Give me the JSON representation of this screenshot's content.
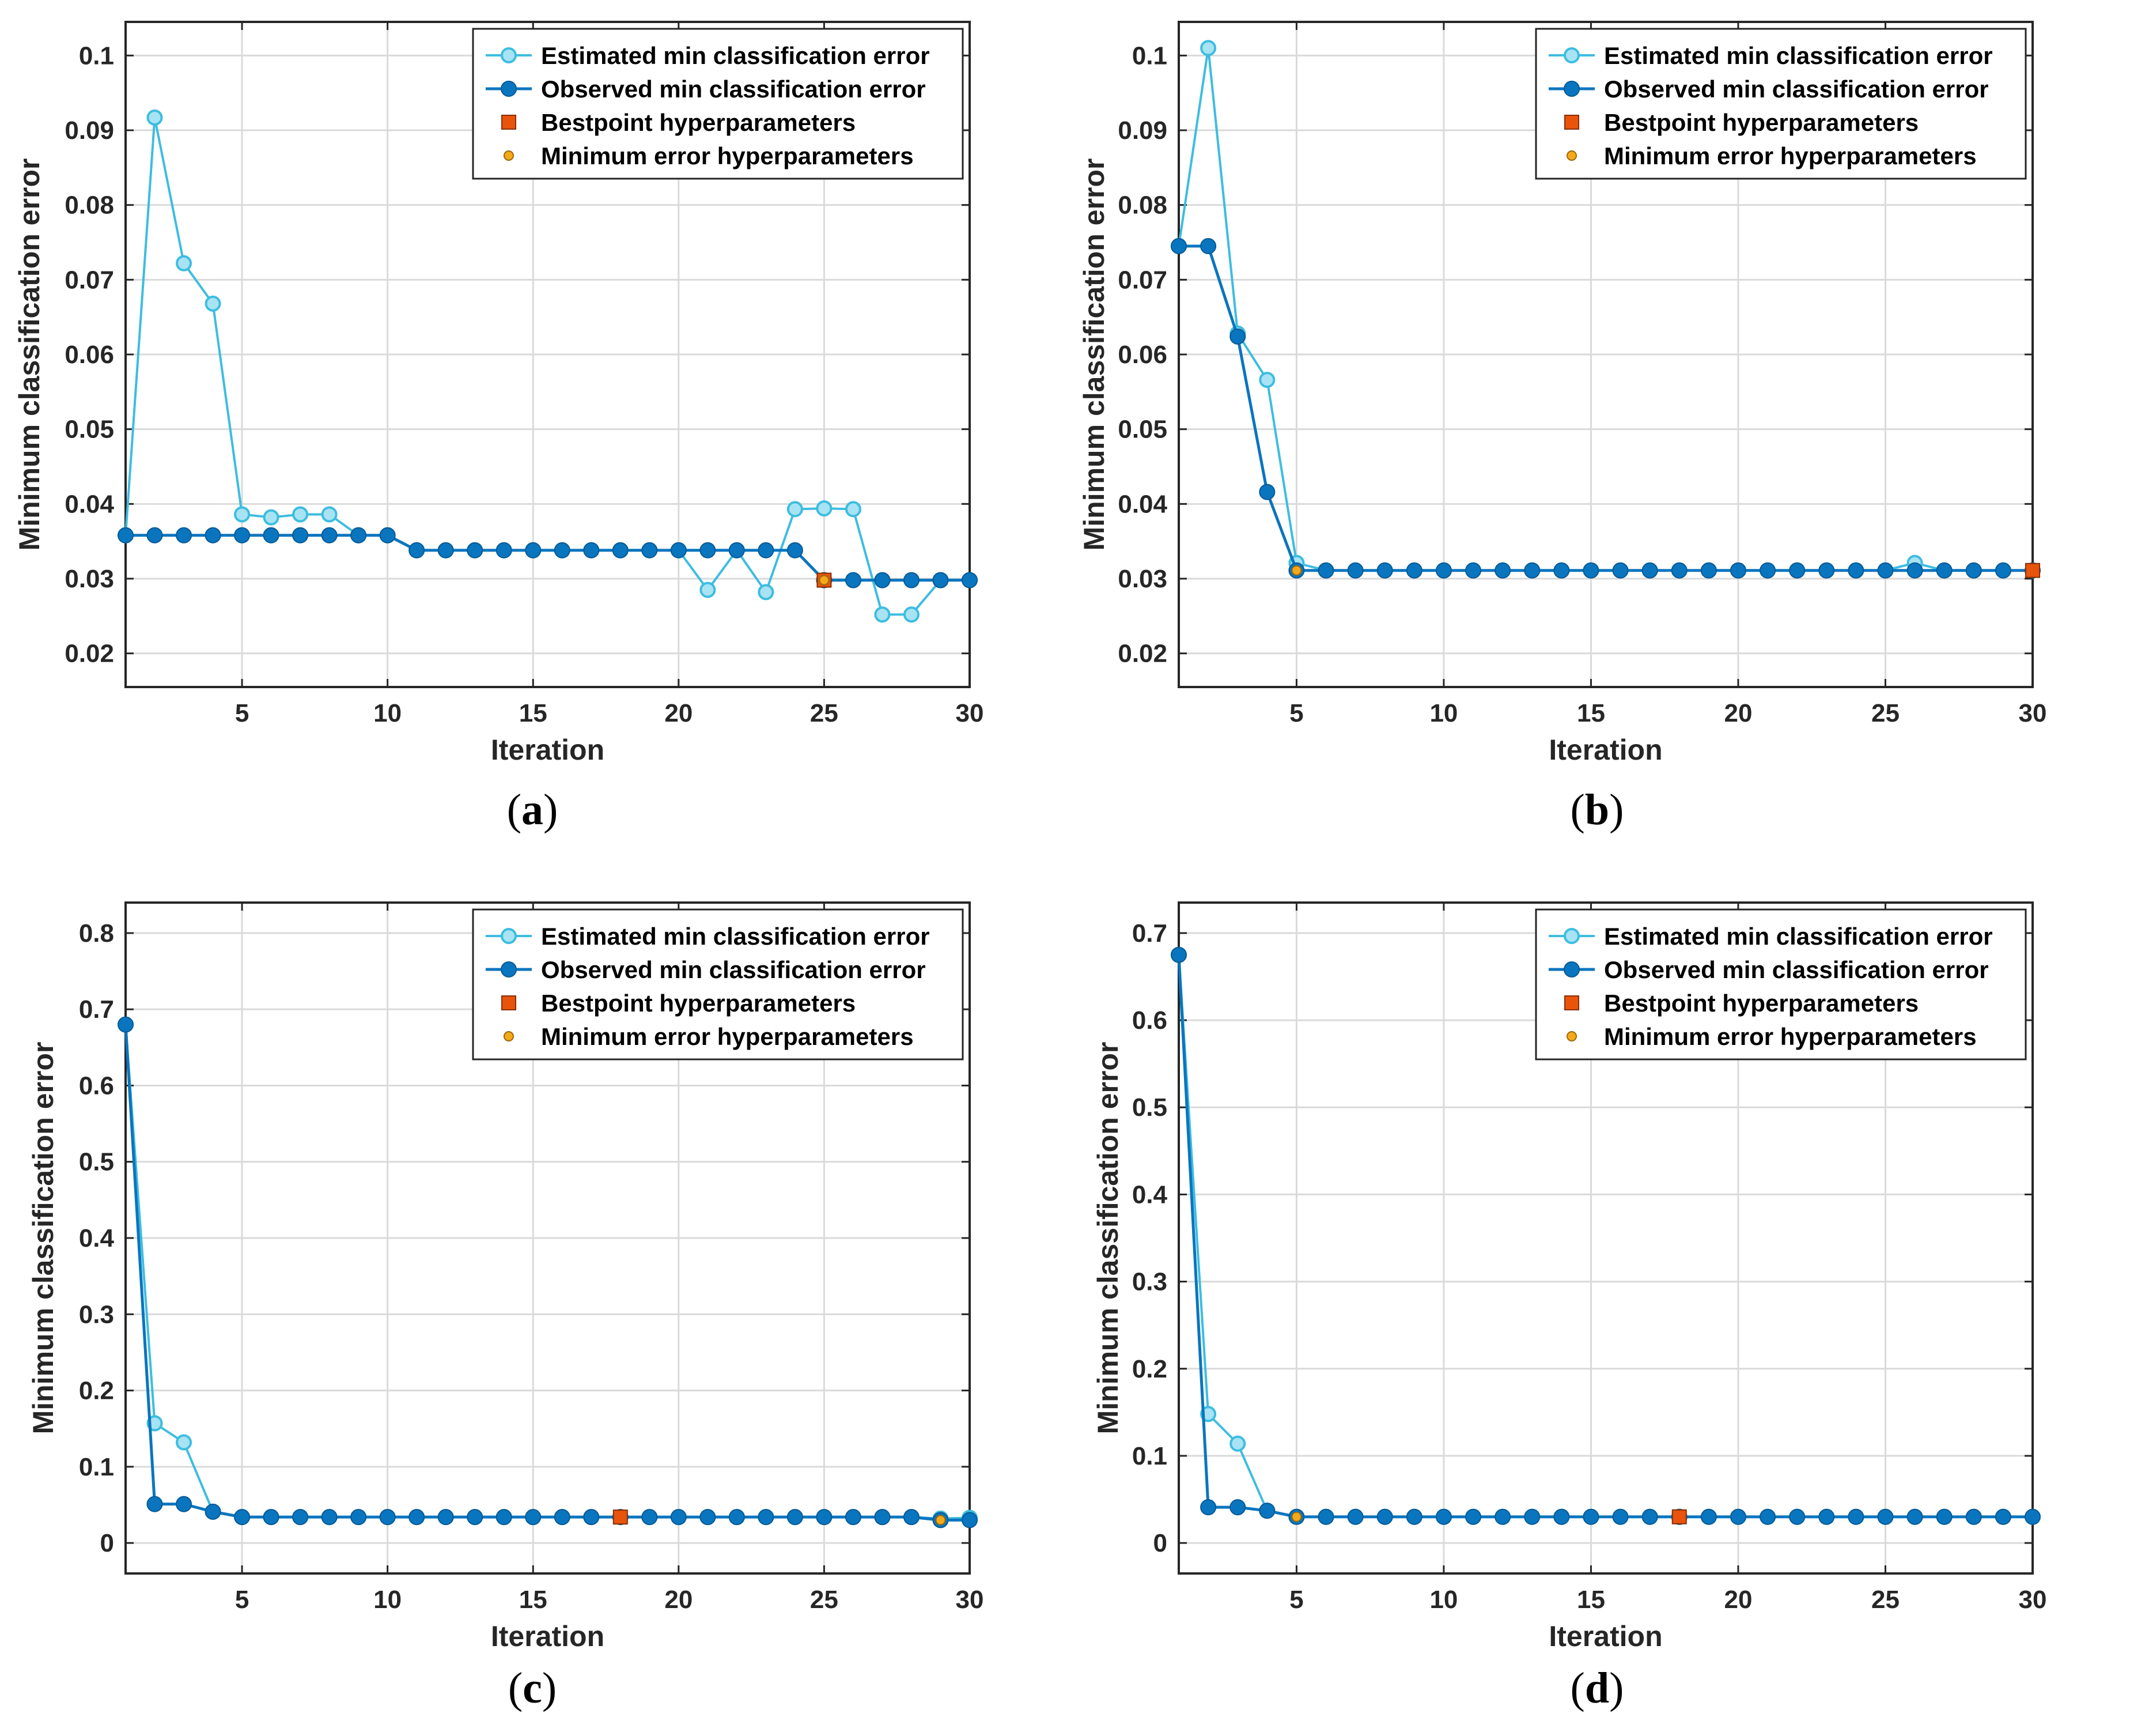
{
  "figure": {
    "colors": {
      "estimated": "#3DBDE0",
      "estimated_fill": "#A8E3F4",
      "observed": "#0A75BF",
      "bestpoint": "#E8540C",
      "minerror": "#F5A81A",
      "grid": "#DADADA",
      "axis": "#262626"
    }
  },
  "chart_data": [
    {
      "type": "line",
      "panel_label": "a",
      "xlabel": "Iteration",
      "ylabel": "Minimum classification error",
      "xlim": [
        1,
        30
      ],
      "ylim": [
        0.0155,
        0.1045
      ],
      "xticks": [
        5,
        10,
        15,
        20,
        25,
        30
      ],
      "yticks": [
        0.02,
        0.03,
        0.04,
        0.05,
        0.06,
        0.07,
        0.08,
        0.09,
        0.1
      ],
      "ytick_labels": [
        "0.02",
        "0.03",
        "0.04",
        "0.05",
        "0.06",
        "0.07",
        "0.08",
        "0.09",
        "0.1"
      ],
      "grid": true,
      "legend_position": "top-right",
      "legend": [
        "Estimated min classification error",
        "Observed min classification error",
        "Bestpoint hyperparameters",
        "Minimum error hyperparameters"
      ],
      "x": [
        1,
        2,
        3,
        4,
        5,
        6,
        7,
        8,
        9,
        10,
        11,
        12,
        13,
        14,
        15,
        16,
        17,
        18,
        19,
        20,
        21,
        22,
        23,
        24,
        25,
        26,
        27,
        28,
        29,
        30
      ],
      "series": [
        {
          "name": "Estimated min classification error",
          "values": [
            0.0358,
            0.0917,
            0.0722,
            0.0668,
            0.0386,
            0.0382,
            0.0386,
            0.0386,
            0.0358,
            0.0358,
            0.0338,
            0.0338,
            0.0338,
            0.0338,
            0.0338,
            0.0338,
            0.0338,
            0.0338,
            0.0338,
            0.0338,
            0.0285,
            0.0338,
            0.0282,
            0.0393,
            0.0394,
            0.0393,
            0.0252,
            0.0252,
            0.0298,
            0.0298
          ]
        },
        {
          "name": "Observed min classification error",
          "values": [
            0.0358,
            0.0358,
            0.0358,
            0.0358,
            0.0358,
            0.0358,
            0.0358,
            0.0358,
            0.0358,
            0.0358,
            0.0338,
            0.0338,
            0.0338,
            0.0338,
            0.0338,
            0.0338,
            0.0338,
            0.0338,
            0.0338,
            0.0338,
            0.0338,
            0.0338,
            0.0338,
            0.0338,
            0.0298,
            0.0298,
            0.0298,
            0.0298,
            0.0298,
            0.0298
          ]
        }
      ],
      "bestpoint": {
        "x": 25,
        "y": 0.0298
      },
      "min_error": {
        "x": 25,
        "y": 0.0298
      }
    },
    {
      "type": "line",
      "panel_label": "b",
      "xlabel": "Iteration",
      "ylabel": "Minimum classification error",
      "xlim": [
        1,
        30
      ],
      "ylim": [
        0.0155,
        0.1045
      ],
      "xticks": [
        5,
        10,
        15,
        20,
        25,
        30
      ],
      "yticks": [
        0.02,
        0.03,
        0.04,
        0.05,
        0.06,
        0.07,
        0.08,
        0.09,
        0.1
      ],
      "ytick_labels": [
        "0.02",
        "0.03",
        "0.04",
        "0.05",
        "0.06",
        "0.07",
        "0.08",
        "0.09",
        "0.1"
      ],
      "grid": true,
      "legend_position": "top-right",
      "legend": [
        "Estimated min classification error",
        "Observed min classification error",
        "Bestpoint hyperparameters",
        "Minimum error hyperparameters"
      ],
      "x": [
        1,
        2,
        3,
        4,
        5,
        6,
        7,
        8,
        9,
        10,
        11,
        12,
        13,
        14,
        15,
        16,
        17,
        18,
        19,
        20,
        21,
        22,
        23,
        24,
        25,
        26,
        27,
        28,
        29,
        30
      ],
      "series": [
        {
          "name": "Estimated min classification error",
          "values": [
            0.0745,
            0.101,
            0.0628,
            0.0566,
            0.0321,
            0.0311,
            0.0311,
            0.0311,
            0.0311,
            0.0311,
            0.0311,
            0.0311,
            0.0311,
            0.0311,
            0.0311,
            0.0311,
            0.0311,
            0.0311,
            0.0311,
            0.0311,
            0.0311,
            0.0311,
            0.0311,
            0.0311,
            0.0311,
            0.0321,
            0.0311,
            0.0311,
            0.0311,
            0.0311
          ]
        },
        {
          "name": "Observed min classification error",
          "values": [
            0.0745,
            0.0745,
            0.0624,
            0.0416,
            0.0311,
            0.0311,
            0.0311,
            0.0311,
            0.0311,
            0.0311,
            0.0311,
            0.0311,
            0.0311,
            0.0311,
            0.0311,
            0.0311,
            0.0311,
            0.0311,
            0.0311,
            0.0311,
            0.0311,
            0.0311,
            0.0311,
            0.0311,
            0.0311,
            0.0311,
            0.0311,
            0.0311,
            0.0311,
            0.0311
          ]
        }
      ],
      "bestpoint": {
        "x": 30,
        "y": 0.0311
      },
      "min_error": {
        "x": 5,
        "y": 0.0311
      }
    },
    {
      "type": "line",
      "panel_label": "c",
      "xlabel": "Iteration",
      "ylabel": "Minimum classification error",
      "xlim": [
        1,
        30
      ],
      "ylim": [
        -0.04,
        0.84
      ],
      "xticks": [
        5,
        10,
        15,
        20,
        25,
        30
      ],
      "yticks": [
        0,
        0.1,
        0.2,
        0.3,
        0.4,
        0.5,
        0.6,
        0.7,
        0.8
      ],
      "ytick_labels": [
        "0",
        "0.1",
        "0.2",
        "0.3",
        "0.4",
        "0.5",
        "0.6",
        "0.7",
        "0.8"
      ],
      "grid": true,
      "legend_position": "top-right",
      "legend": [
        "Estimated min classification error",
        "Observed min classification error",
        "Bestpoint hyperparameters",
        "Minimum error hyperparameters"
      ],
      "x": [
        1,
        2,
        3,
        4,
        5,
        6,
        7,
        8,
        9,
        10,
        11,
        12,
        13,
        14,
        15,
        16,
        17,
        18,
        19,
        20,
        21,
        22,
        23,
        24,
        25,
        26,
        27,
        28,
        29,
        30
      ],
      "series": [
        {
          "name": "Estimated min classification error",
          "values": [
            0.68,
            0.157,
            0.132,
            0.041,
            0.034,
            0.034,
            0.034,
            0.034,
            0.034,
            0.034,
            0.034,
            0.034,
            0.034,
            0.034,
            0.034,
            0.034,
            0.034,
            0.034,
            0.034,
            0.034,
            0.034,
            0.034,
            0.034,
            0.034,
            0.034,
            0.034,
            0.034,
            0.034,
            0.032,
            0.033
          ]
        },
        {
          "name": "Observed min classification error",
          "values": [
            0.68,
            0.051,
            0.051,
            0.041,
            0.034,
            0.034,
            0.034,
            0.034,
            0.034,
            0.034,
            0.034,
            0.034,
            0.034,
            0.034,
            0.034,
            0.034,
            0.034,
            0.034,
            0.034,
            0.034,
            0.034,
            0.034,
            0.034,
            0.034,
            0.034,
            0.034,
            0.034,
            0.034,
            0.03,
            0.03
          ]
        }
      ],
      "bestpoint": {
        "x": 18,
        "y": 0.034
      },
      "min_error": {
        "x": 29,
        "y": 0.03
      }
    },
    {
      "type": "line",
      "panel_label": "d",
      "xlabel": "Iteration",
      "ylabel": "Minimum classification error",
      "xlim": [
        1,
        30
      ],
      "ylim": [
        -0.035,
        0.735
      ],
      "xticks": [
        5,
        10,
        15,
        20,
        25,
        30
      ],
      "yticks": [
        0,
        0.1,
        0.2,
        0.3,
        0.4,
        0.5,
        0.6,
        0.7
      ],
      "ytick_labels": [
        "0",
        "0.1",
        "0.2",
        "0.3",
        "0.4",
        "0.5",
        "0.6",
        "0.7"
      ],
      "grid": true,
      "legend_position": "top-right",
      "legend": [
        "Estimated min classification error",
        "Observed min classification error",
        "Bestpoint hyperparameters",
        "Minimum error hyperparameters"
      ],
      "x": [
        1,
        2,
        3,
        4,
        5,
        6,
        7,
        8,
        9,
        10,
        11,
        12,
        13,
        14,
        15,
        16,
        17,
        18,
        19,
        20,
        21,
        22,
        23,
        24,
        25,
        26,
        27,
        28,
        29,
        30
      ],
      "series": [
        {
          "name": "Estimated min classification error",
          "values": [
            0.675,
            0.148,
            0.114,
            0.037,
            0.03,
            0.03,
            0.03,
            0.03,
            0.03,
            0.03,
            0.03,
            0.03,
            0.03,
            0.03,
            0.03,
            0.03,
            0.03,
            0.03,
            0.03,
            0.03,
            0.03,
            0.03,
            0.03,
            0.03,
            0.03,
            0.03,
            0.03,
            0.03,
            0.03,
            0.03
          ]
        },
        {
          "name": "Observed min classification error",
          "values": [
            0.675,
            0.041,
            0.041,
            0.037,
            0.03,
            0.03,
            0.03,
            0.03,
            0.03,
            0.03,
            0.03,
            0.03,
            0.03,
            0.03,
            0.03,
            0.03,
            0.03,
            0.03,
            0.03,
            0.03,
            0.03,
            0.03,
            0.03,
            0.03,
            0.03,
            0.03,
            0.03,
            0.03,
            0.03,
            0.03
          ]
        }
      ],
      "bestpoint": {
        "x": 18,
        "y": 0.03
      },
      "min_error": {
        "x": 5,
        "y": 0.03
      }
    }
  ],
  "captions": [
    {
      "open": "(",
      "label": "a",
      "close": ")"
    },
    {
      "open": "(",
      "label": "b",
      "close": ")"
    },
    {
      "open": "(",
      "label": "c",
      "close": ")"
    },
    {
      "open": "(",
      "label": "d",
      "close": ")"
    }
  ]
}
